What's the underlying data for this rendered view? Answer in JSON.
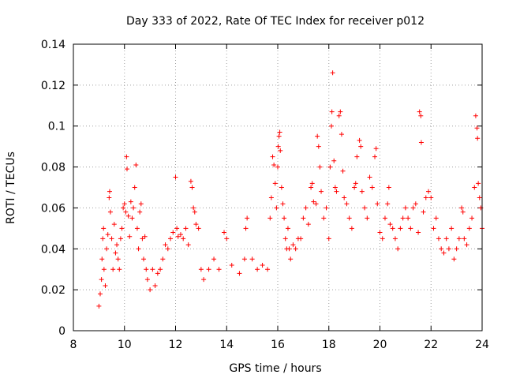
{
  "chart_data": {
    "type": "scatter",
    "title": "Day 333 of 2022, Rate Of TEC Index for receiver p012",
    "xlabel": "GPS time / hours",
    "ylabel": "ROTI / TECUs",
    "xlim": [
      8,
      24
    ],
    "ylim": [
      0,
      0.14
    ],
    "xticks": [
      8,
      10,
      12,
      14,
      16,
      18,
      20,
      22,
      24
    ],
    "yticks": [
      0,
      0.02,
      0.04,
      0.06,
      0.08,
      0.1,
      0.12,
      0.14
    ],
    "xtick_labels": [
      "8",
      "10",
      "12",
      "14",
      "16",
      "18",
      "20",
      "22",
      "24"
    ],
    "ytick_labels": [
      "0",
      "0.02",
      "0.04",
      "0.06",
      "0.08",
      "0.1",
      "0.12",
      "0.14"
    ],
    "grid": true,
    "marker": "plus",
    "color": "#ff0000",
    "points": [
      [
        9.0,
        0.012
      ],
      [
        9.05,
        0.018
      ],
      [
        9.1,
        0.025
      ],
      [
        9.12,
        0.035
      ],
      [
        9.15,
        0.045
      ],
      [
        9.18,
        0.05
      ],
      [
        9.2,
        0.03
      ],
      [
        9.25,
        0.022
      ],
      [
        9.3,
        0.04
      ],
      [
        9.35,
        0.047
      ],
      [
        9.4,
        0.065
      ],
      [
        9.42,
        0.068
      ],
      [
        9.45,
        0.058
      ],
      [
        9.5,
        0.045
      ],
      [
        9.55,
        0.03
      ],
      [
        9.6,
        0.052
      ],
      [
        9.65,
        0.038
      ],
      [
        9.7,
        0.042
      ],
      [
        9.75,
        0.035
      ],
      [
        9.8,
        0.03
      ],
      [
        9.85,
        0.045
      ],
      [
        9.9,
        0.05
      ],
      [
        9.95,
        0.06
      ],
      [
        10.0,
        0.062
      ],
      [
        10.05,
        0.058
      ],
      [
        10.08,
        0.085
      ],
      [
        10.1,
        0.079
      ],
      [
        10.15,
        0.056
      ],
      [
        10.2,
        0.046
      ],
      [
        10.25,
        0.063
      ],
      [
        10.3,
        0.055
      ],
      [
        10.35,
        0.06
      ],
      [
        10.4,
        0.07
      ],
      [
        10.45,
        0.081
      ],
      [
        10.5,
        0.05
      ],
      [
        10.55,
        0.04
      ],
      [
        10.6,
        0.058
      ],
      [
        10.65,
        0.062
      ],
      [
        10.7,
        0.045
      ],
      [
        10.75,
        0.035
      ],
      [
        10.8,
        0.046
      ],
      [
        10.85,
        0.03
      ],
      [
        10.9,
        0.025
      ],
      [
        11.0,
        0.02
      ],
      [
        11.1,
        0.03
      ],
      [
        11.2,
        0.022
      ],
      [
        11.3,
        0.028
      ],
      [
        11.4,
        0.03
      ],
      [
        11.5,
        0.035
      ],
      [
        11.6,
        0.042
      ],
      [
        11.7,
        0.04
      ],
      [
        11.8,
        0.045
      ],
      [
        11.9,
        0.048
      ],
      [
        12.0,
        0.075
      ],
      [
        12.05,
        0.05
      ],
      [
        12.1,
        0.046
      ],
      [
        12.2,
        0.047
      ],
      [
        12.3,
        0.045
      ],
      [
        12.4,
        0.05
      ],
      [
        12.5,
        0.042
      ],
      [
        12.6,
        0.073
      ],
      [
        12.65,
        0.07
      ],
      [
        12.7,
        0.06
      ],
      [
        12.75,
        0.058
      ],
      [
        12.8,
        0.052
      ],
      [
        12.9,
        0.05
      ],
      [
        13.0,
        0.03
      ],
      [
        13.1,
        0.025
      ],
      [
        13.3,
        0.03
      ],
      [
        13.5,
        0.035
      ],
      [
        13.7,
        0.03
      ],
      [
        13.9,
        0.048
      ],
      [
        14.0,
        0.045
      ],
      [
        14.2,
        0.032
      ],
      [
        14.5,
        0.028
      ],
      [
        14.7,
        0.035
      ],
      [
        14.75,
        0.05
      ],
      [
        14.8,
        0.055
      ],
      [
        15.0,
        0.035
      ],
      [
        15.2,
        0.03
      ],
      [
        15.4,
        0.032
      ],
      [
        15.6,
        0.03
      ],
      [
        15.7,
        0.055
      ],
      [
        15.75,
        0.065
      ],
      [
        15.8,
        0.085
      ],
      [
        15.85,
        0.081
      ],
      [
        15.9,
        0.072
      ],
      [
        15.95,
        0.06
      ],
      [
        16.0,
        0.08
      ],
      [
        16.02,
        0.09
      ],
      [
        16.05,
        0.095
      ],
      [
        16.08,
        0.097
      ],
      [
        16.1,
        0.088
      ],
      [
        16.15,
        0.07
      ],
      [
        16.2,
        0.062
      ],
      [
        16.25,
        0.055
      ],
      [
        16.3,
        0.045
      ],
      [
        16.35,
        0.04
      ],
      [
        16.4,
        0.05
      ],
      [
        16.45,
        0.04
      ],
      [
        16.5,
        0.035
      ],
      [
        16.6,
        0.042
      ],
      [
        16.7,
        0.04
      ],
      [
        16.8,
        0.045
      ],
      [
        16.9,
        0.045
      ],
      [
        17.0,
        0.055
      ],
      [
        17.1,
        0.06
      ],
      [
        17.2,
        0.052
      ],
      [
        17.3,
        0.07
      ],
      [
        17.35,
        0.072
      ],
      [
        17.4,
        0.063
      ],
      [
        17.5,
        0.062
      ],
      [
        17.55,
        0.095
      ],
      [
        17.6,
        0.09
      ],
      [
        17.65,
        0.08
      ],
      [
        17.7,
        0.068
      ],
      [
        17.8,
        0.055
      ],
      [
        17.9,
        0.06
      ],
      [
        18.0,
        0.045
      ],
      [
        18.05,
        0.08
      ],
      [
        18.1,
        0.1
      ],
      [
        18.12,
        0.107
      ],
      [
        18.15,
        0.126
      ],
      [
        18.2,
        0.083
      ],
      [
        18.25,
        0.07
      ],
      [
        18.3,
        0.068
      ],
      [
        18.4,
        0.105
      ],
      [
        18.45,
        0.107
      ],
      [
        18.5,
        0.096
      ],
      [
        18.55,
        0.078
      ],
      [
        18.6,
        0.065
      ],
      [
        18.7,
        0.062
      ],
      [
        18.8,
        0.055
      ],
      [
        18.9,
        0.05
      ],
      [
        19.0,
        0.07
      ],
      [
        19.05,
        0.072
      ],
      [
        19.1,
        0.085
      ],
      [
        19.2,
        0.093
      ],
      [
        19.25,
        0.09
      ],
      [
        19.3,
        0.068
      ],
      [
        19.4,
        0.06
      ],
      [
        19.5,
        0.055
      ],
      [
        19.6,
        0.075
      ],
      [
        19.7,
        0.07
      ],
      [
        19.8,
        0.085
      ],
      [
        19.85,
        0.089
      ],
      [
        19.9,
        0.062
      ],
      [
        20.0,
        0.048
      ],
      [
        20.1,
        0.045
      ],
      [
        20.2,
        0.055
      ],
      [
        20.3,
        0.062
      ],
      [
        20.35,
        0.07
      ],
      [
        20.4,
        0.052
      ],
      [
        20.5,
        0.05
      ],
      [
        20.6,
        0.045
      ],
      [
        20.7,
        0.04
      ],
      [
        20.8,
        0.05
      ],
      [
        20.9,
        0.055
      ],
      [
        21.0,
        0.06
      ],
      [
        21.1,
        0.055
      ],
      [
        21.2,
        0.05
      ],
      [
        21.3,
        0.06
      ],
      [
        21.4,
        0.062
      ],
      [
        21.5,
        0.048
      ],
      [
        21.55,
        0.107
      ],
      [
        21.6,
        0.105
      ],
      [
        21.62,
        0.092
      ],
      [
        21.7,
        0.058
      ],
      [
        21.8,
        0.065
      ],
      [
        21.9,
        0.068
      ],
      [
        22.0,
        0.065
      ],
      [
        22.1,
        0.05
      ],
      [
        22.2,
        0.055
      ],
      [
        22.3,
        0.045
      ],
      [
        22.4,
        0.04
      ],
      [
        22.5,
        0.038
      ],
      [
        22.6,
        0.045
      ],
      [
        22.7,
        0.04
      ],
      [
        22.8,
        0.05
      ],
      [
        22.9,
        0.035
      ],
      [
        23.0,
        0.04
      ],
      [
        23.1,
        0.045
      ],
      [
        23.2,
        0.06
      ],
      [
        23.25,
        0.058
      ],
      [
        23.3,
        0.045
      ],
      [
        23.4,
        0.042
      ],
      [
        23.5,
        0.05
      ],
      [
        23.6,
        0.055
      ],
      [
        23.7,
        0.07
      ],
      [
        23.75,
        0.105
      ],
      [
        23.8,
        0.099
      ],
      [
        23.82,
        0.094
      ],
      [
        23.85,
        0.072
      ],
      [
        23.9,
        0.065
      ],
      [
        23.95,
        0.06
      ],
      [
        24.0,
        0.05
      ]
    ]
  }
}
